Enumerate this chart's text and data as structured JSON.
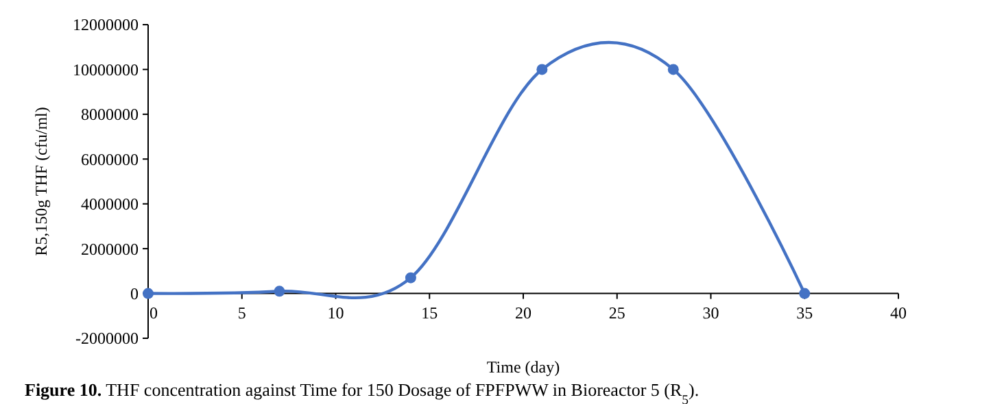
{
  "chart_data": {
    "type": "line",
    "xlabel": "Time (day)",
    "ylabel": "R5,150g THF (cfu/ml)",
    "annotations": [
      "Figure 10. THF concentration against Time for 150 Dosage of FPFPWW in Bioreactor 5 (R$_{5}$)."
    ],
    "x": [
      0,
      7,
      14,
      21,
      28,
      35
    ],
    "series": [
      {
        "color": "#4472c4",
        "values": [
          0,
          100000,
          700000,
          10000000,
          10000000,
          0
        ]
      }
    ],
    "xlim": [
      0,
      40
    ],
    "xticks": [
      0,
      5,
      10,
      15,
      20,
      25,
      30,
      35,
      40
    ],
    "ylim": [
      -2000000,
      12000000
    ],
    "yticks": [
      -2000000,
      0,
      2000000,
      4000000,
      6000000,
      8000000,
      10000000,
      12000000
    ],
    "marker": "circle",
    "line_style": "solid"
  }
}
